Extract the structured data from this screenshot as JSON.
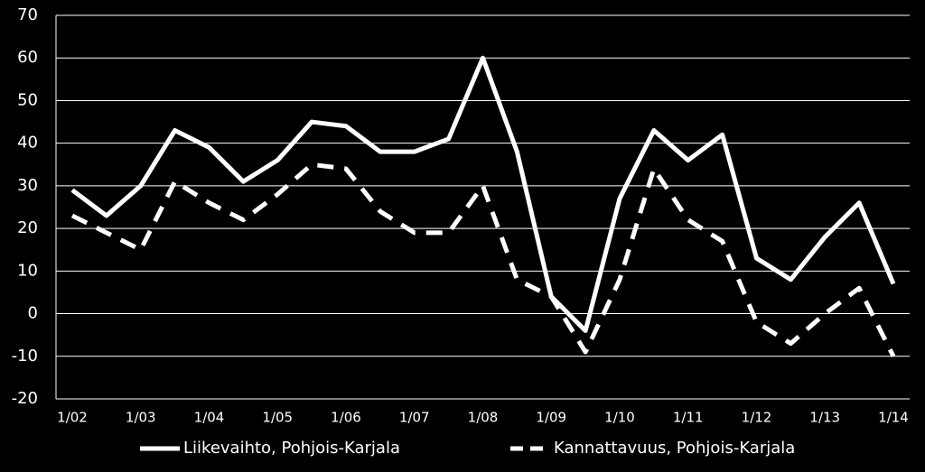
{
  "chart_data": {
    "type": "line",
    "categories": [
      "1/02",
      null,
      "1/03",
      null,
      "1/04",
      null,
      "1/05",
      null,
      "1/06",
      null,
      "1/07",
      null,
      "1/08",
      null,
      "1/09",
      null,
      "1/10",
      null,
      "1/11",
      null,
      "1/12",
      null,
      "1/13",
      null,
      "1/14"
    ],
    "series": [
      {
        "name": "Liikevaihto, Pohjois-Karjala",
        "color": "#ffffff",
        "dash": false,
        "values": [
          29,
          23,
          30,
          43,
          39,
          31,
          36,
          45,
          44,
          38,
          38,
          41,
          60,
          38,
          4,
          -4,
          27,
          43,
          36,
          42,
          13,
          8,
          18,
          26,
          7
        ]
      },
      {
        "name": "Kannattavuus, Pohjois-Karjala",
        "color": "#ffffff",
        "dash": true,
        "values": [
          23,
          19,
          15,
          31,
          26,
          22,
          28,
          35,
          34,
          24,
          19,
          19,
          30,
          8,
          4,
          -9,
          8,
          34,
          22,
          17,
          -2,
          -7,
          0,
          6,
          -10
        ]
      }
    ],
    "ylim": [
      -20,
      70
    ],
    "yticks": [
      -20,
      -10,
      0,
      10,
      20,
      30,
      40,
      50,
      60,
      70
    ],
    "grid": true
  }
}
